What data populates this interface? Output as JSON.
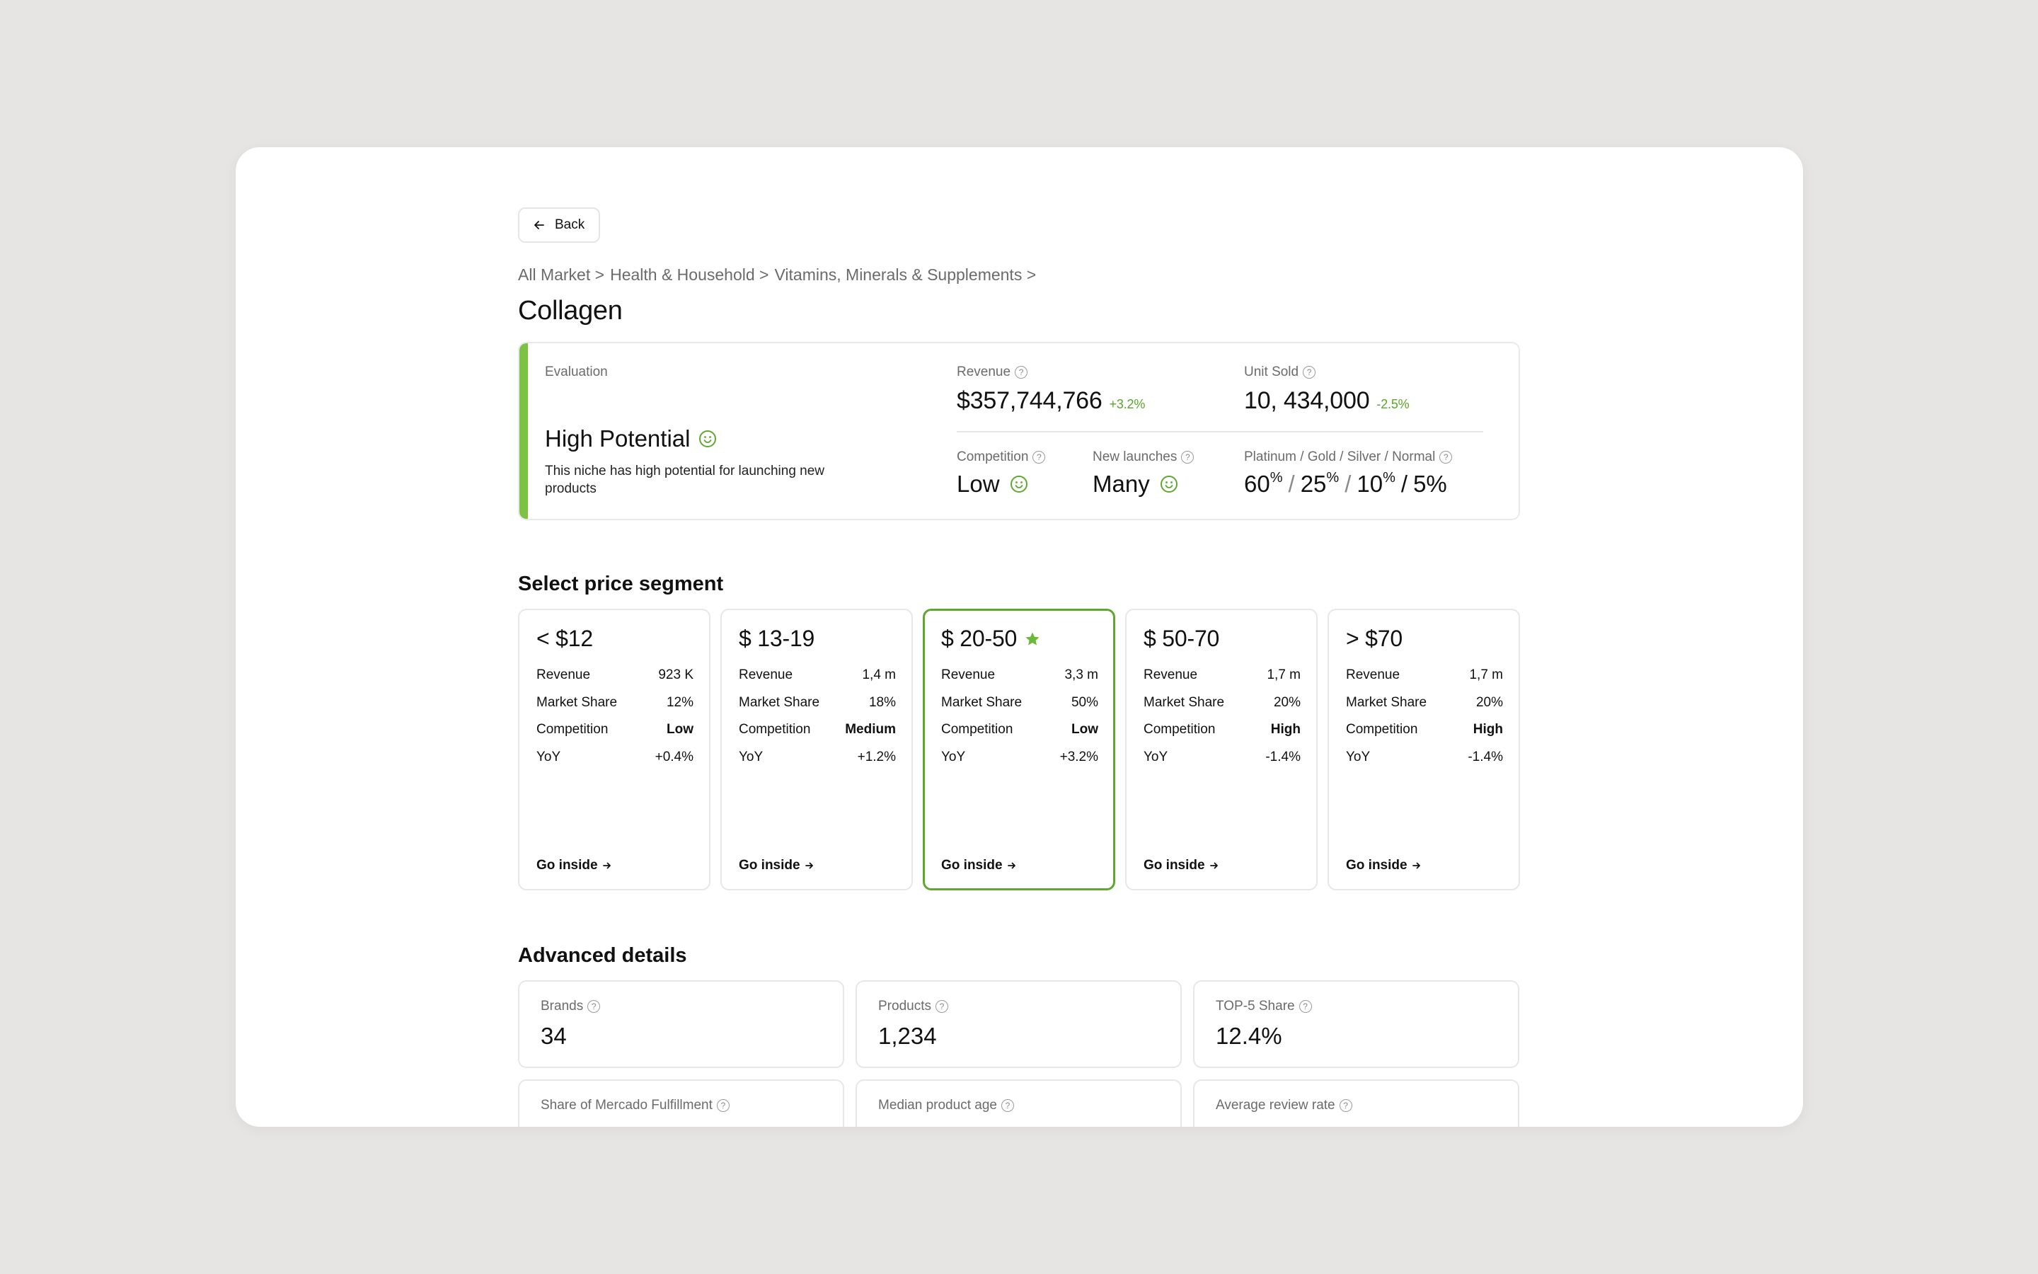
{
  "back_label": "Back",
  "breadcrumb": [
    "All Market >",
    "Health & Household >",
    "Vitamins, Minerals & Supplements >"
  ],
  "title": "Collagen",
  "evaluation": {
    "label": "Evaluation",
    "status": "High Potential",
    "description": "This niche has high potential for launching new products",
    "revenue": {
      "label": "Revenue",
      "value": "$357,744,766",
      "delta": "+3.2%"
    },
    "unit_sold": {
      "label": "Unit Sold",
      "value": "10, 434,000",
      "delta": "-2.5%"
    },
    "competition": {
      "label": "Competition",
      "value": "Low"
    },
    "new_launches": {
      "label": "New launches",
      "value": "Many"
    },
    "tiers": {
      "label": "Platinum / Gold / Silver / Normal",
      "platinum": "60",
      "gold": "25",
      "silver": "10",
      "normal": "5%",
      "pct": "%",
      "sep1": "/",
      "sep2": "/",
      "sep3": "/"
    },
    "accent_color": "#7cc243"
  },
  "segments_title": "Select price segment",
  "segment_row_labels": {
    "revenue": "Revenue",
    "market_share": "Market Share",
    "competition": "Competition",
    "yoy": "YoY"
  },
  "segments": [
    {
      "title": "< $12",
      "revenue": "923 K",
      "market_share": "12%",
      "competition": "Low",
      "yoy": "+0.4%",
      "go": "Go inside",
      "selected": false
    },
    {
      "title": "$ 13-19",
      "revenue": "1,4 m",
      "market_share": "18%",
      "competition": "Medium",
      "yoy": "+1.2%",
      "go": "Go inside",
      "selected": false
    },
    {
      "title": "$ 20-50",
      "revenue": "3,3 m",
      "market_share": "50%",
      "competition": "Low",
      "yoy": "+3.2%",
      "go": "Go inside",
      "selected": true
    },
    {
      "title": "$ 50-70",
      "revenue": "1,7 m",
      "market_share": "20%",
      "competition": "High",
      "yoy": "-1.4%",
      "go": "Go inside",
      "selected": false
    },
    {
      "title": "> $70",
      "revenue": "1,7 m",
      "market_share": "20%",
      "competition": "High",
      "yoy": "-1.4%",
      "go": "Go inside",
      "selected": false
    }
  ],
  "advanced_title": "Advanced details",
  "advanced": [
    {
      "label": "Brands",
      "value": "34"
    },
    {
      "label": "Products",
      "value": "1,234"
    },
    {
      "label": "TOP-5 Share",
      "value": "12.4%"
    },
    {
      "label": "Share of Mercado Fulfillment",
      "value": ""
    },
    {
      "label": "Median product age",
      "value": ""
    },
    {
      "label": "Average review rate",
      "value": ""
    }
  ]
}
